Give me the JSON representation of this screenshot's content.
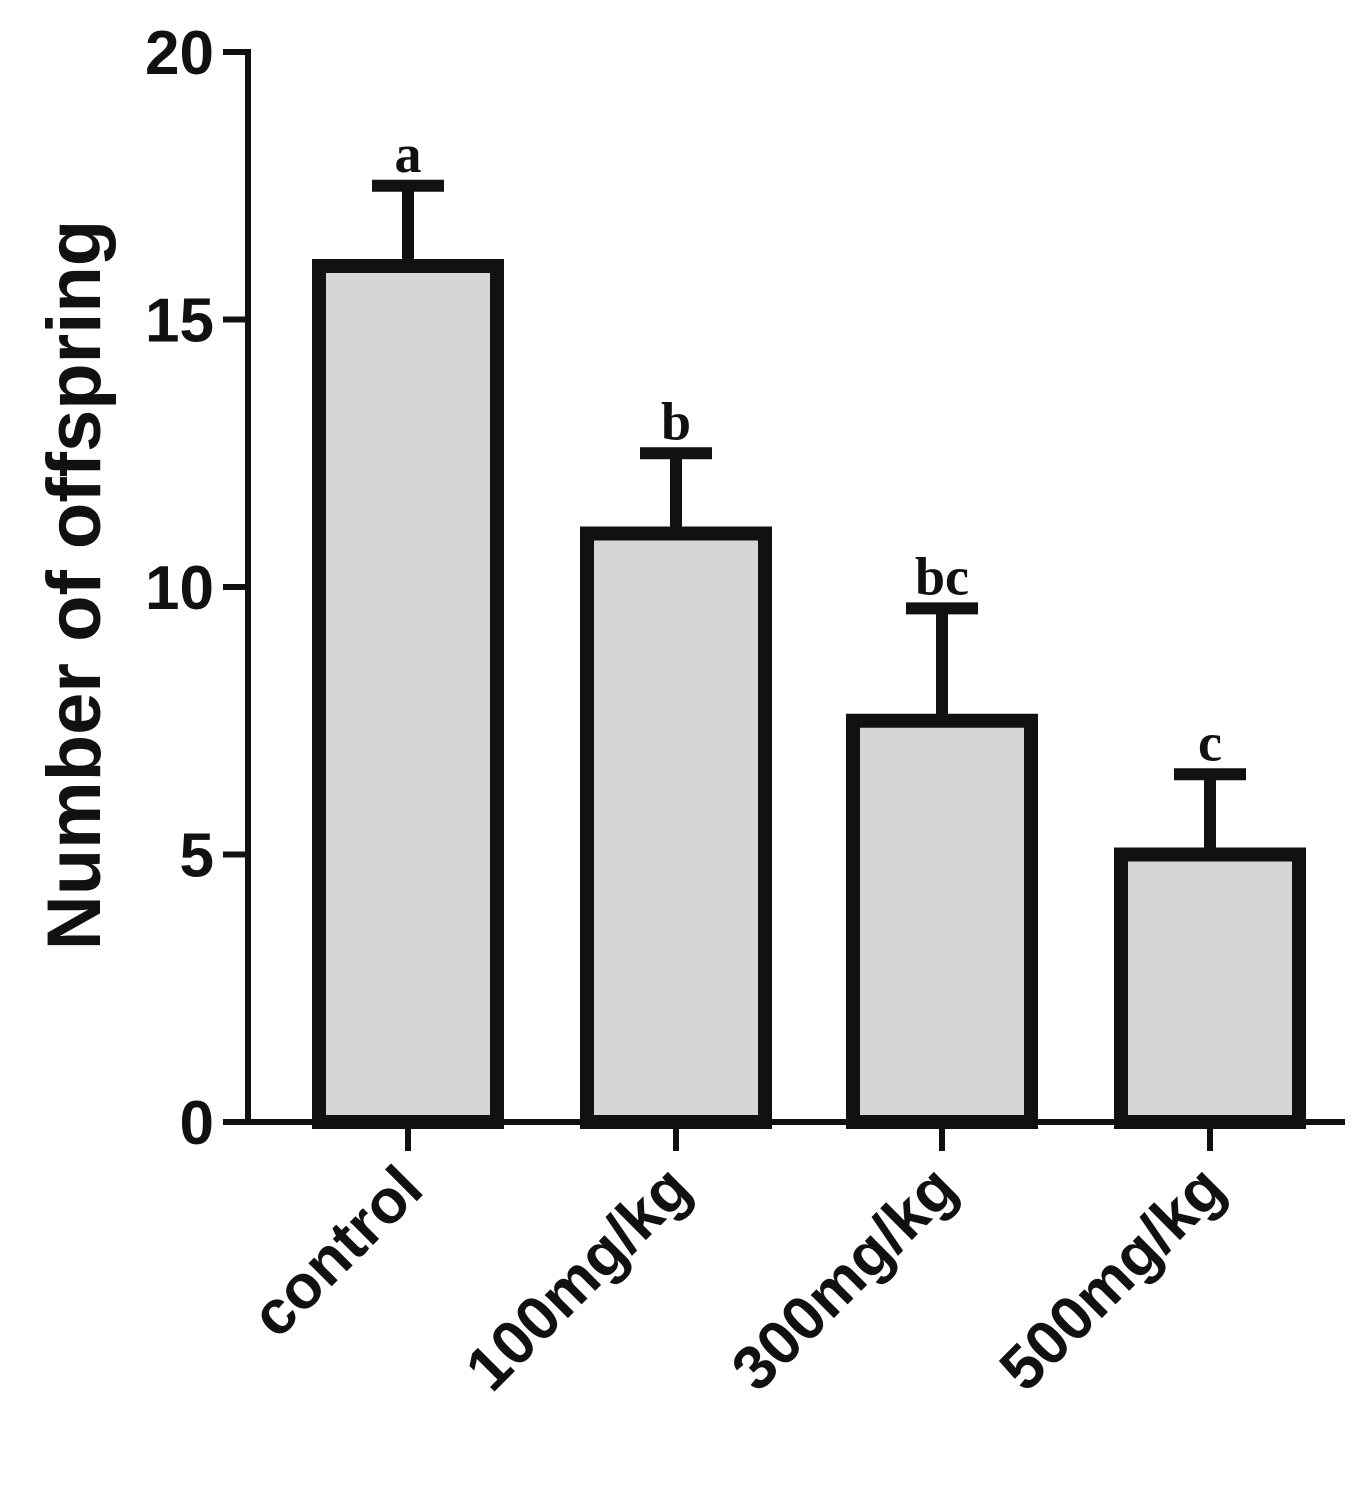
{
  "chart_data": {
    "type": "bar",
    "ylabel": "Number of offspring",
    "xlabel": "",
    "categories": [
      "control",
      "100mg/kg",
      "300mg/kg",
      "500mg/kg"
    ],
    "values": [
      16,
      11,
      7.5,
      5
    ],
    "error": [
      1.5,
      1.5,
      2.1,
      1.5
    ],
    "significance": [
      "a",
      "b",
      "bc",
      "c"
    ],
    "ylim": [
      0,
      20
    ],
    "yticks": [
      0,
      5,
      10,
      15,
      20
    ],
    "grid": false,
    "colors": {
      "bar_fill": "#d6d6d6",
      "bar_edge": "#111111"
    }
  }
}
